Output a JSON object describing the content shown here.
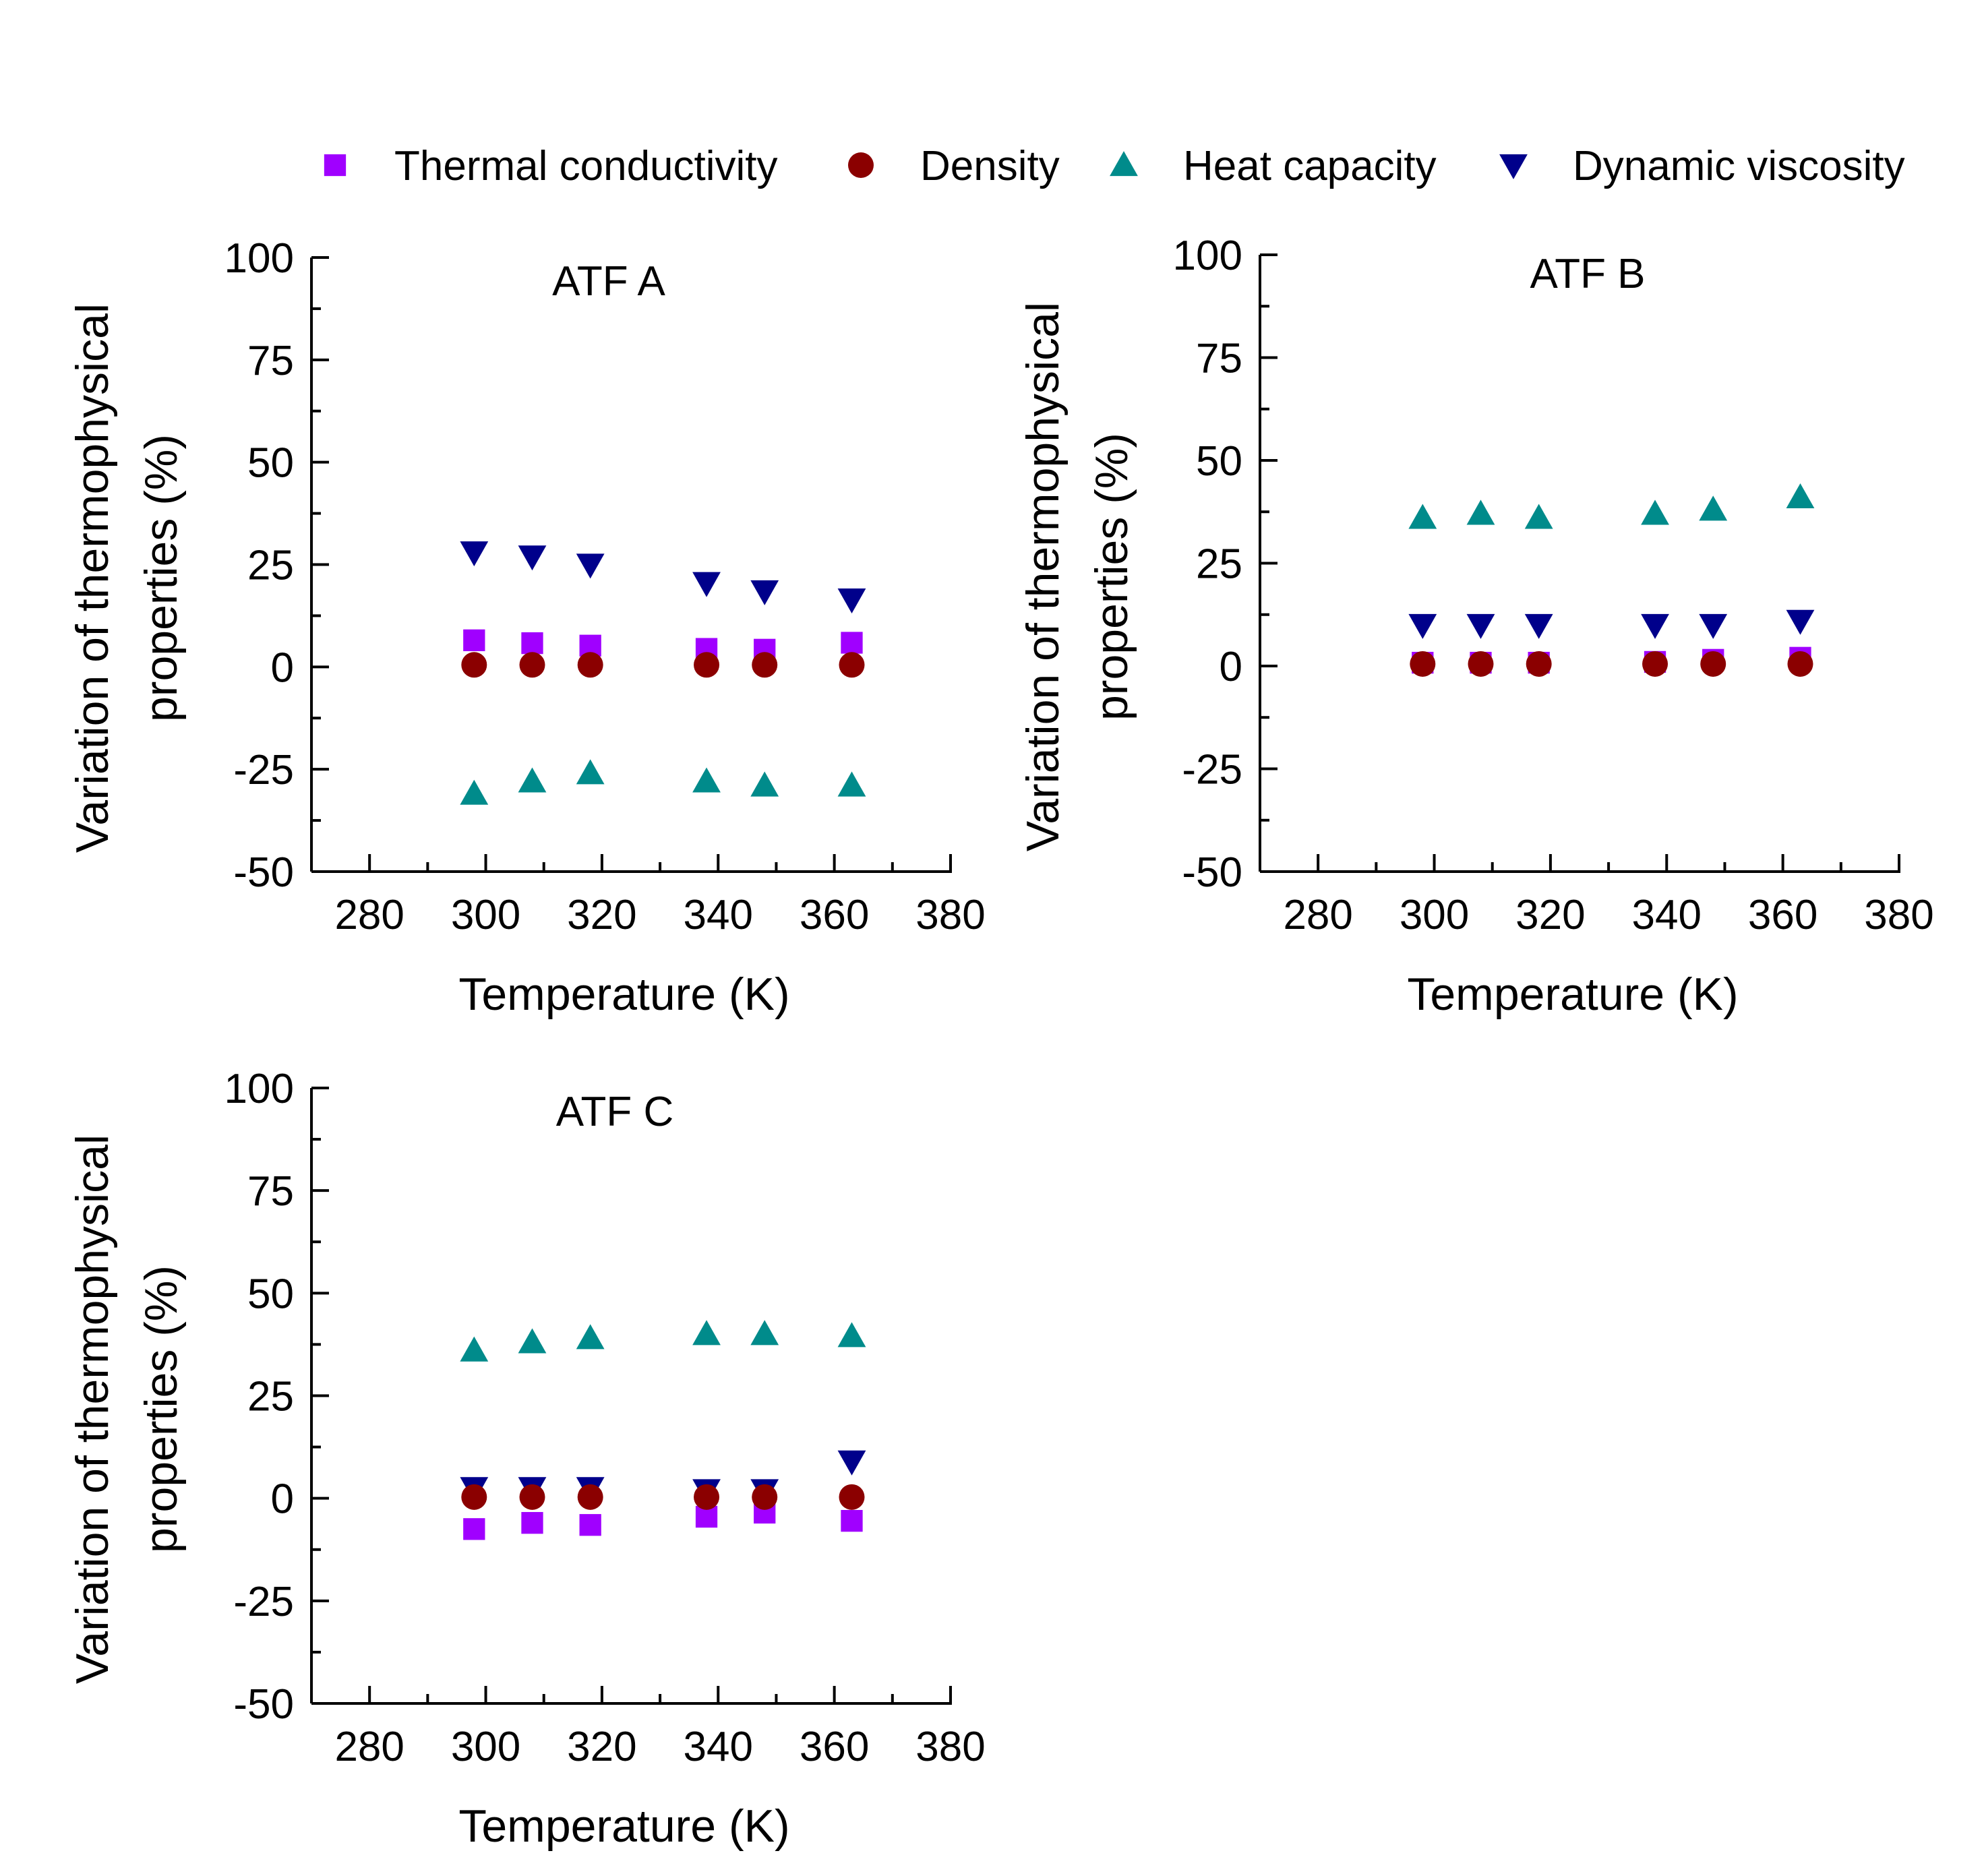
{
  "legend": [
    {
      "name": "Thermal conductivity",
      "marker": "square",
      "color": "#a000ff"
    },
    {
      "name": "Density",
      "marker": "circle",
      "color": "#8b0000"
    },
    {
      "name": "Heat capacity",
      "marker": "triangle-up",
      "color": "#008b8b"
    },
    {
      "name": "Dynamic viscosity",
      "marker": "triangle-down",
      "color": "#00008b"
    }
  ],
  "chart_data": [
    {
      "type": "scatter",
      "title": "ATF A",
      "xlabel": "Temperature (K)",
      "ylabel": [
        "Variation of thermophysical",
        "properties (%)"
      ],
      "xlim": [
        270,
        380
      ],
      "ylim": [
        -50,
        100
      ],
      "xticks": [
        "280",
        "300",
        "320",
        "340",
        "360",
        "380"
      ],
      "yticks": [
        "-50",
        "-25",
        "0",
        "25",
        "50",
        "75",
        "100"
      ],
      "x": [
        298,
        308,
        318,
        338,
        348,
        363
      ],
      "series": [
        {
          "name": "Thermal conductivity",
          "values": [
            6.5,
            5.8,
            5.2,
            4.4,
            4.2,
            5.9
          ]
        },
        {
          "name": "Density",
          "values": [
            0.5,
            0.5,
            0.5,
            0.5,
            0.5,
            0.5
          ]
        },
        {
          "name": "Heat capacity",
          "values": [
            -31,
            -28,
            -26,
            -28,
            -29,
            -29
          ]
        },
        {
          "name": "Dynamic viscosity",
          "values": [
            28,
            27,
            25,
            20.5,
            18.5,
            16.5
          ]
        }
      ]
    },
    {
      "type": "scatter",
      "title": "ATF B",
      "xlabel": "Temperature (K)",
      "ylabel": [
        "Variation of thermophysical",
        "properties (%)"
      ],
      "xlim": [
        270,
        380
      ],
      "ylim": [
        -50,
        100
      ],
      "xticks": [
        "280",
        "300",
        "320",
        "340",
        "360",
        "380"
      ],
      "yticks": [
        "-50",
        "-25",
        "0",
        "25",
        "50",
        "75",
        "100"
      ],
      "x": [
        298,
        308,
        318,
        338,
        348,
        363
      ],
      "series": [
        {
          "name": "Thermal conductivity",
          "values": [
            0.8,
            0.8,
            0.8,
            1.0,
            1.5,
            2.0
          ]
        },
        {
          "name": "Density",
          "values": [
            0.5,
            0.5,
            0.5,
            0.5,
            0.5,
            0.5
          ]
        },
        {
          "name": "Heat capacity",
          "values": [
            36,
            37,
            36,
            37,
            38,
            41
          ]
        },
        {
          "name": "Dynamic viscosity",
          "values": [
            10,
            10,
            10,
            10,
            10,
            11
          ]
        }
      ]
    },
    {
      "type": "scatter",
      "title": "ATF C",
      "xlabel": "Temperature (K)",
      "ylabel": [
        "Variation of thermophysical",
        "properties (%)"
      ],
      "xlim": [
        270,
        380
      ],
      "ylim": [
        -50,
        100
      ],
      "xticks": [
        "280",
        "300",
        "320",
        "340",
        "360",
        "380"
      ],
      "yticks": [
        "-50",
        "-25",
        "0",
        "25",
        "50",
        "75",
        "100"
      ],
      "x": [
        298,
        308,
        318,
        338,
        348,
        363
      ],
      "series": [
        {
          "name": "Thermal conductivity",
          "values": [
            -7.5,
            -6,
            -6.5,
            -4.5,
            -3.5,
            -5.5
          ]
        },
        {
          "name": "Density",
          "values": [
            0.3,
            0.3,
            0.3,
            0.3,
            0.3,
            0.3
          ]
        },
        {
          "name": "Heat capacity",
          "values": [
            36,
            38,
            39,
            40,
            40,
            39.5
          ]
        },
        {
          "name": "Dynamic viscosity",
          "values": [
            2.5,
            2.5,
            2.5,
            2,
            2,
            9
          ]
        }
      ]
    }
  ]
}
